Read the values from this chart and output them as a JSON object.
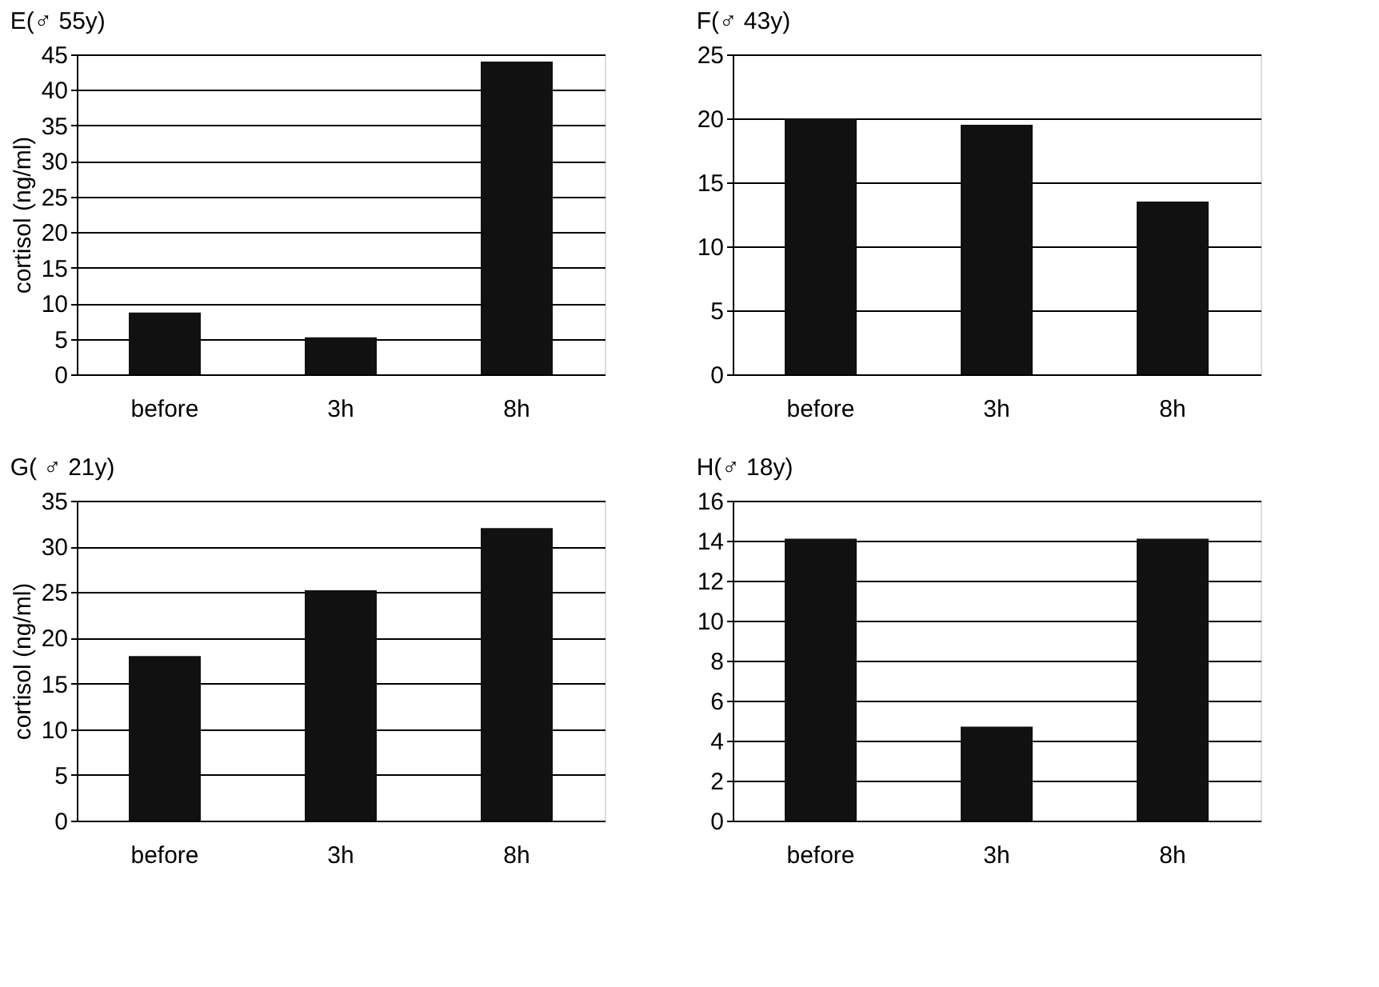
{
  "chart_data": [
    {
      "type": "bar",
      "title": "E(♂ 55y)",
      "ylabel": "cortisol (ng/ml)",
      "categories": [
        "before",
        "3h",
        "8h"
      ],
      "values": [
        8.7,
        5.2,
        44
      ],
      "color": "#111111",
      "ylim": [
        0,
        45
      ],
      "yticks": [
        0,
        5,
        10,
        15,
        20,
        25,
        30,
        35,
        40,
        45
      ],
      "grid": "y"
    },
    {
      "type": "bar",
      "title": "F(♂ 43y)",
      "categories": [
        "before",
        "3h",
        "8h"
      ],
      "values": [
        20,
        19.5,
        13.5
      ],
      "color": "#111111",
      "ylim": [
        0,
        25
      ],
      "yticks": [
        0,
        5,
        10,
        15,
        20,
        25
      ],
      "grid": "y"
    },
    {
      "type": "bar",
      "title": "G( ♂ 21y)",
      "ylabel": "cortisol (ng/ml)",
      "categories": [
        "before",
        "3h",
        "8h"
      ],
      "values": [
        18,
        25.2,
        32
      ],
      "color": "#111111",
      "ylim": [
        0,
        35
      ],
      "yticks": [
        0,
        5,
        10,
        15,
        20,
        25,
        30,
        35
      ],
      "grid": "y"
    },
    {
      "type": "bar",
      "title": "H(♂ 18y)",
      "categories": [
        "before",
        "3h",
        "8h"
      ],
      "values": [
        14.1,
        4.7,
        14.1
      ],
      "color": "#111111",
      "ylim": [
        0,
        16
      ],
      "yticks": [
        0,
        2,
        4,
        6,
        8,
        10,
        12,
        14,
        16
      ],
      "grid": "y"
    }
  ]
}
